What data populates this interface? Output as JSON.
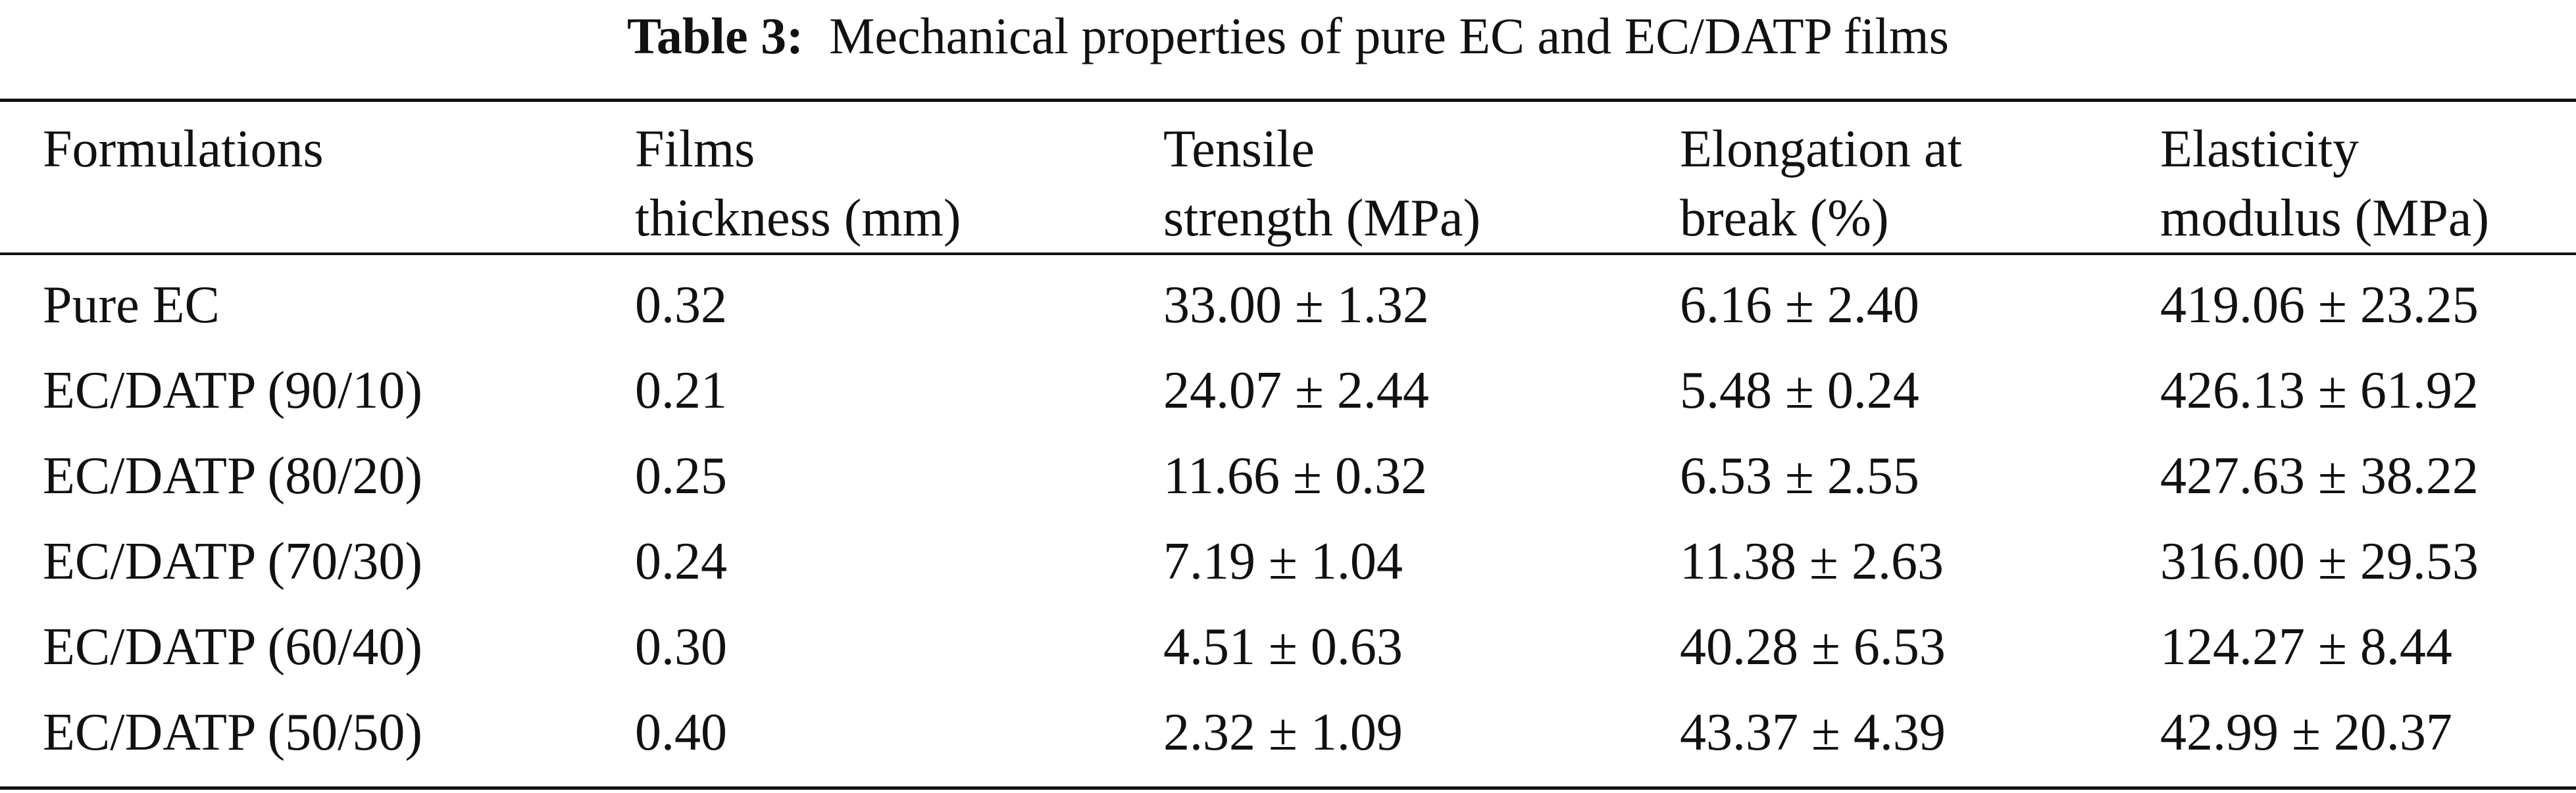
{
  "caption": {
    "label": "Table 3:",
    "text": "Mechanical properties of pure EC and EC/DATP films"
  },
  "headers": [
    {
      "line1": "Formulations",
      "line2": ""
    },
    {
      "line1": "Films",
      "line2": "thickness (mm)"
    },
    {
      "line1": "Tensile",
      "line2": "strength (MPa)"
    },
    {
      "line1": "Elongation at",
      "line2": "break (%)"
    },
    {
      "line1": "Elasticity",
      "line2": "modulus (MPa)"
    }
  ],
  "rows": [
    [
      "Pure EC",
      "0.32",
      "33.00 ± 1.32",
      "6.16 ± 2.40",
      "419.06 ± 23.25"
    ],
    [
      "EC/DATP (90/10)",
      "0.21",
      "24.07 ± 2.44",
      "5.48 ± 0.24",
      "426.13 ± 61.92"
    ],
    [
      "EC/DATP (80/20)",
      "0.25",
      "11.66 ± 0.32",
      "6.53 ± 2.55",
      "427.63 ± 38.22"
    ],
    [
      "EC/DATP (70/30)",
      "0.24",
      "7.19 ± 1.04",
      "11.38 ± 2.63",
      "316.00 ± 29.53"
    ],
    [
      "EC/DATP (60/40)",
      "0.30",
      "4.51 ± 0.63",
      "40.28 ± 6.53",
      "124.27 ± 8.44"
    ],
    [
      "EC/DATP (50/50)",
      "0.40",
      "2.32 ± 1.09",
      "43.37 ± 4.39",
      "42.99 ± 20.37"
    ]
  ]
}
